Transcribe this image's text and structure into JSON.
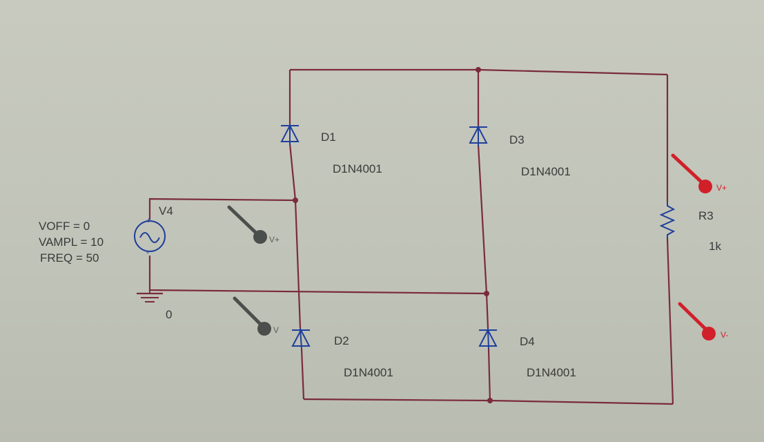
{
  "source": {
    "name": "V4",
    "params": [
      "VOFF = 0",
      "VAMPL = 10",
      "FREQ = 50"
    ]
  },
  "ground": {
    "label": "0"
  },
  "diodes": [
    {
      "ref": "D1",
      "model": "D1N4001"
    },
    {
      "ref": "D3",
      "model": "D1N4001"
    },
    {
      "ref": "D2",
      "model": "D1N4001"
    },
    {
      "ref": "D4",
      "model": "D1N4001"
    }
  ],
  "resistor": {
    "ref": "R3",
    "value": "1k"
  },
  "probes": {
    "gray_upper": "V+",
    "gray_lower": "V",
    "red_upper": "V+",
    "red_lower": "V-"
  },
  "colors": {
    "wire": "#7a2b3a",
    "component": "#1f3f9a",
    "probe_red": "#d0202a",
    "probe_gray": "#4b4f4b"
  }
}
